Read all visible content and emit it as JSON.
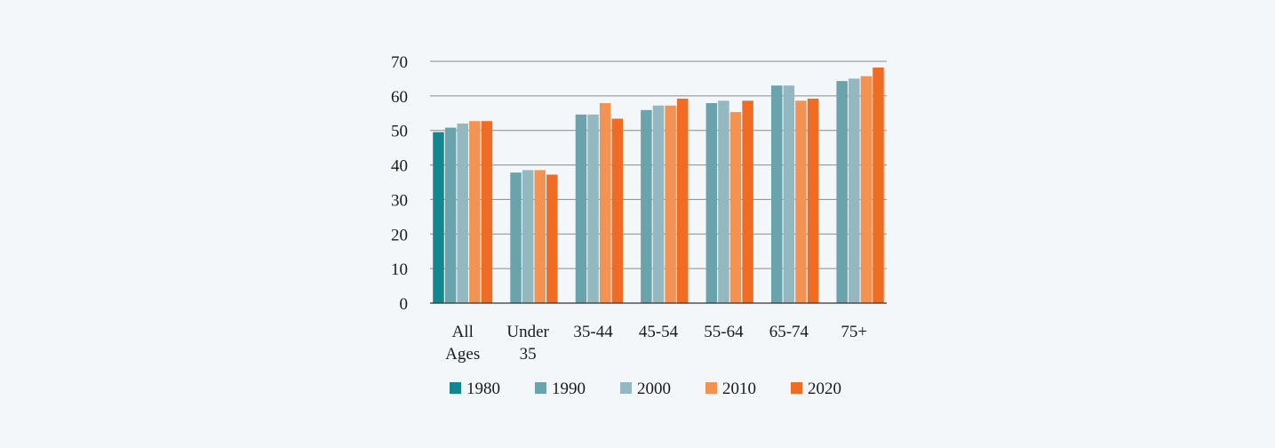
{
  "chart_data": {
    "type": "bar",
    "title": "",
    "xlabel": "",
    "ylabel": "",
    "ylim": [
      0,
      70
    ],
    "yticks": [
      "0",
      "10",
      "20",
      "30",
      "40",
      "50",
      "60",
      "70"
    ],
    "grid": "horizontal",
    "legend_position": "bottom",
    "categories": [
      [
        "All",
        "Ages"
      ],
      [
        "Under",
        "35"
      ],
      [
        "35-44"
      ],
      [
        "45-54"
      ],
      [
        "55-64"
      ],
      [
        "65-74"
      ],
      [
        "75+"
      ]
    ],
    "series": [
      {
        "name": "1980",
        "color": "#12878f",
        "values": [
          49.5,
          null,
          null,
          null,
          null,
          null,
          null
        ]
      },
      {
        "name": "1990",
        "color": "#6aa3ab",
        "values": [
          50.8,
          37.8,
          54.6,
          55.9,
          57.9,
          63.0,
          64.3
        ]
      },
      {
        "name": "2000",
        "color": "#93b8c0",
        "values": [
          52.0,
          38.5,
          54.6,
          57.2,
          58.6,
          63.0,
          65.0
        ]
      },
      {
        "name": "2010",
        "color": "#f29354",
        "values": [
          52.7,
          38.5,
          57.9,
          57.2,
          55.3,
          58.6,
          65.7
        ]
      },
      {
        "name": "2020",
        "color": "#f06b24",
        "values": [
          52.7,
          37.2,
          53.4,
          59.2,
          58.6,
          59.2,
          68.2
        ]
      }
    ]
  }
}
